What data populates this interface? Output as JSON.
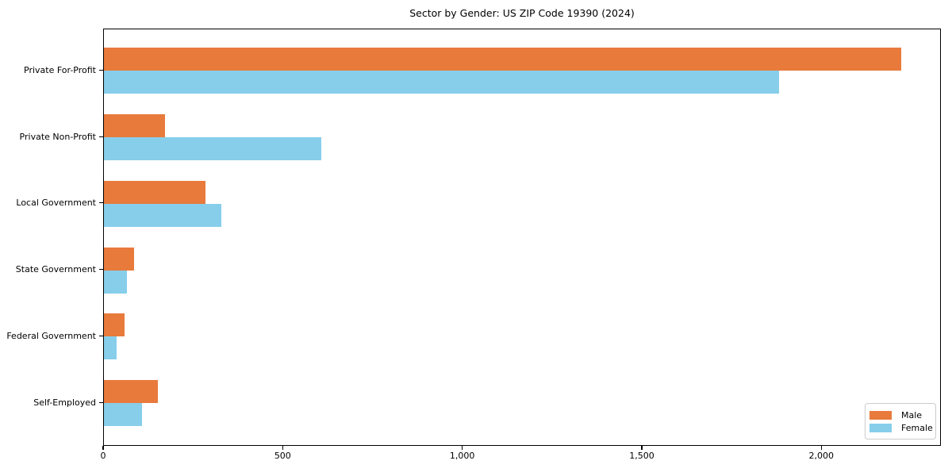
{
  "figure": {
    "background": "#ffffff",
    "axis_color": "#000000",
    "legend_border_color": "#cccccc"
  },
  "chart_data": {
    "type": "bar",
    "orientation": "horizontal",
    "title": "Sector by Gender: US ZIP Code 19390 (2024)",
    "categories": [
      "Private For-Profit",
      "Private Non-Profit",
      "Local Government",
      "State Government",
      "Federal Government",
      "Self-Employed"
    ],
    "series": [
      {
        "name": "Male",
        "color": "#E87A3C",
        "values": [
          2220,
          170,
          282,
          83,
          58,
          150
        ]
      },
      {
        "name": "Female",
        "color": "#87CEEB",
        "values": [
          1880,
          605,
          326,
          64,
          35,
          107
        ]
      }
    ],
    "xlabel": "",
    "ylabel": "",
    "xlim": [
      0,
      2333
    ],
    "x_ticks": [
      {
        "value": 0,
        "label": "0"
      },
      {
        "value": 500,
        "label": "500"
      },
      {
        "value": 1000,
        "label": "1,000"
      },
      {
        "value": 1500,
        "label": "1,500"
      },
      {
        "value": 2000,
        "label": "2,000"
      }
    ],
    "grid": false,
    "legend": {
      "position": "lower-right",
      "entries": [
        "Male",
        "Female"
      ]
    }
  }
}
